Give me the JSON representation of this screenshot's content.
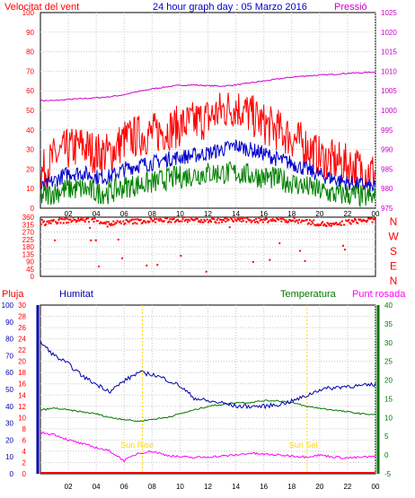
{
  "top_panel": {
    "title": "24 hour graph day : 05 Marzo 2016",
    "left_label": "Velocitat del vent",
    "right_label": "Pressió",
    "left_ticks": [
      "0",
      "10",
      "20",
      "30",
      "40",
      "50",
      "60",
      "70",
      "80",
      "90",
      "100"
    ],
    "right_ticks": [
      "975",
      "980",
      "985",
      "990",
      "995",
      "1000",
      "1005",
      "1010",
      "1015",
      "1020",
      "1025"
    ],
    "x_ticks": [
      "02",
      "04",
      "06",
      "08",
      "10",
      "12",
      "14",
      "16",
      "18",
      "20",
      "22",
      "00"
    ]
  },
  "dir_panel": {
    "left_ticks": [
      "0",
      "45",
      "90",
      "135",
      "180",
      "225",
      "270",
      "315",
      "360"
    ],
    "right_ticks": [
      "N",
      "E",
      "S",
      "W",
      "N"
    ]
  },
  "bottom_panel": {
    "labels": {
      "rain": "Pluja",
      "humidity": "Humitat",
      "temperature": "Temperatura",
      "dewpoint": "Punt rosada"
    },
    "rain_ticks": [
      "0",
      "2",
      "4",
      "6",
      "8",
      "10",
      "12",
      "14",
      "16",
      "18",
      "20",
      "22",
      "24",
      "26",
      "28",
      "30"
    ],
    "humidity_ticks": [
      "0",
      "10",
      "20",
      "30",
      "40",
      "50",
      "60",
      "70",
      "80",
      "90",
      "100"
    ],
    "temp_ticks": [
      "-5",
      "0",
      "5",
      "10",
      "15",
      "20",
      "25",
      "30",
      "35",
      "40"
    ],
    "x_ticks": [
      "02",
      "04",
      "06",
      "08",
      "10",
      "12",
      "14",
      "16",
      "18",
      "20",
      "22",
      "00"
    ],
    "sunrise_label": "Sun Rise",
    "sunset_label": "Sun Set"
  },
  "colors": {
    "speed": "#ff0000",
    "average": "#0000cc",
    "minimum": "#008000",
    "pressure": "#cc00cc",
    "direction": "#ff0000",
    "humidity": "#0000aa",
    "temperature": "#007700",
    "dewpoint": "#ff00ff",
    "rain": "#ff0000",
    "sun": "#ffd700",
    "grid": "#c8c8c8"
  },
  "chart_data": [
    {
      "type": "line",
      "hours": [
        0,
        1,
        2,
        3,
        4,
        5,
        6,
        7,
        8,
        9,
        10,
        11,
        12,
        13,
        14,
        15,
        16,
        17,
        18,
        19,
        20,
        21,
        22,
        23,
        24
      ],
      "series": [
        {
          "key": "speed_max",
          "values": [
            17,
            26,
            30,
            32,
            28,
            28,
            35,
            37,
            38,
            40,
            42,
            44,
            46,
            50,
            52,
            48,
            43,
            40,
            36,
            32,
            26,
            24,
            22,
            20,
            18
          ]
        },
        {
          "key": "speed_avg",
          "values": [
            10,
            14,
            18,
            18,
            16,
            16,
            20,
            22,
            23,
            25,
            26,
            27,
            28,
            30,
            32,
            30,
            28,
            25,
            23,
            20,
            17,
            15,
            13,
            12,
            10
          ]
        },
        {
          "key": "speed_min",
          "values": [
            6,
            8,
            10,
            10,
            8,
            8,
            11,
            12,
            13,
            15,
            16,
            17,
            18,
            18,
            18,
            17,
            16,
            15,
            13,
            11,
            9,
            7,
            7,
            6,
            5
          ]
        },
        {
          "key": "pressure",
          "values": [
            1002.5,
            1002.5,
            1002.8,
            1003,
            1003.2,
            1003.5,
            1004,
            1004.8,
            1005.5,
            1006,
            1006.4,
            1006.5,
            1006.3,
            1006.2,
            1006.5,
            1007,
            1007.5,
            1008,
            1008.5,
            1008.8,
            1009,
            1009.2,
            1009.5,
            1009.6,
            1009.8
          ]
        }
      ],
      "x_range": [
        0,
        24
      ],
      "ylim_left": [
        0,
        100
      ],
      "ylim_right": [
        975,
        1025
      ]
    },
    {
      "type": "scatter",
      "hours": [
        0,
        1,
        2,
        3,
        4,
        5,
        6,
        7,
        8,
        9,
        10,
        11,
        12,
        13,
        14,
        15,
        16,
        17,
        18,
        19,
        20,
        21,
        22,
        23,
        24
      ],
      "direction": [
        330,
        335,
        340,
        345,
        340,
        320,
        330,
        335,
        340,
        340,
        345,
        345,
        340,
        340,
        345,
        340,
        340,
        345,
        340,
        335,
        320,
        310,
        330,
        340,
        340
      ],
      "ylim": [
        0,
        360
      ]
    },
    {
      "type": "line",
      "hours": [
        0,
        1,
        2,
        3,
        4,
        5,
        6,
        7,
        8,
        9,
        10,
        11,
        12,
        13,
        14,
        15,
        16,
        17,
        18,
        19,
        20,
        21,
        22,
        23,
        24
      ],
      "series": [
        {
          "key": "humidity",
          "values": [
            78,
            70,
            65,
            58,
            53,
            49,
            55,
            60,
            59,
            56,
            52,
            45,
            43,
            42,
            40,
            40,
            40,
            41,
            43,
            46,
            50,
            51,
            52,
            52,
            53
          ]
        },
        {
          "key": "temperature",
          "values": [
            12,
            12.5,
            12,
            11.5,
            11,
            10,
            9.5,
            9,
            9.5,
            10,
            11,
            12,
            13,
            13.5,
            14,
            14,
            14.5,
            14.5,
            14,
            13,
            12.5,
            12,
            11.5,
            11,
            10.8
          ]
        },
        {
          "key": "dewpoint",
          "values": [
            6,
            5.5,
            4,
            3,
            2,
            1,
            -1.5,
            0.5,
            1,
            0,
            -0.5,
            -0.7,
            -0.5,
            -0.3,
            0,
            0.5,
            0.2,
            0,
            -0.2,
            -0.5,
            0,
            -0.5,
            -0.8,
            -0.6,
            -0.4
          ]
        },
        {
          "key": "rain",
          "values": [
            0,
            0,
            0,
            0,
            0,
            0,
            0,
            0,
            0,
            0,
            0,
            0,
            0,
            0,
            0,
            0,
            0,
            0,
            0,
            0,
            0,
            0,
            0,
            0,
            0
          ]
        }
      ],
      "x_range": [
        0,
        24
      ],
      "ylim_humidity": [
        0,
        100
      ],
      "ylim_temperature": [
        -5,
        40
      ],
      "ylim_rain": [
        0,
        30
      ],
      "sunrise_hour": 7.3,
      "sunset_hour": 19.1
    }
  ]
}
